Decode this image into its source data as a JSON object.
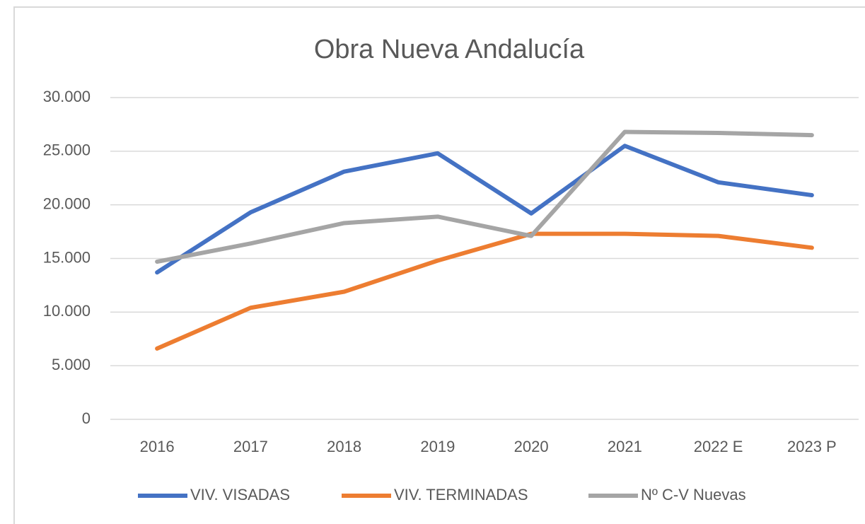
{
  "chart_data": {
    "type": "line",
    "title": "Obra Nueva Andalucía",
    "categories": [
      "2016",
      "2017",
      "2018",
      "2019",
      "2020",
      "2021",
      "2022 E",
      "2023 P"
    ],
    "series": [
      {
        "name": "VIV. VISADAS",
        "color": "#4472c4",
        "values": [
          13700,
          19300,
          23100,
          24800,
          19200,
          25500,
          22100,
          20900
        ]
      },
      {
        "name": "VIV. TERMINADAS",
        "color": "#ed7d31",
        "values": [
          6600,
          10400,
          11900,
          14800,
          17300,
          17300,
          17100,
          16000
        ]
      },
      {
        "name": "Nº C-V Nuevas",
        "color": "#a5a5a5",
        "values": [
          14700,
          16400,
          18300,
          18900,
          17100,
          26800,
          26700,
          26500
        ]
      }
    ],
    "ylim": [
      0,
      30000
    ],
    "yticks": [
      0,
      {
        "value": 5000,
        "label": "5.000"
      },
      {
        "value": 10000,
        "label": "10.000"
      },
      {
        "value": 15000,
        "label": "15.000"
      },
      {
        "value": 20000,
        "label": "20.000"
      },
      {
        "value": 25000,
        "label": "25.000"
      },
      {
        "value": 30000,
        "label": "30.000"
      }
    ],
    "grid": true,
    "legend": "bottom"
  }
}
